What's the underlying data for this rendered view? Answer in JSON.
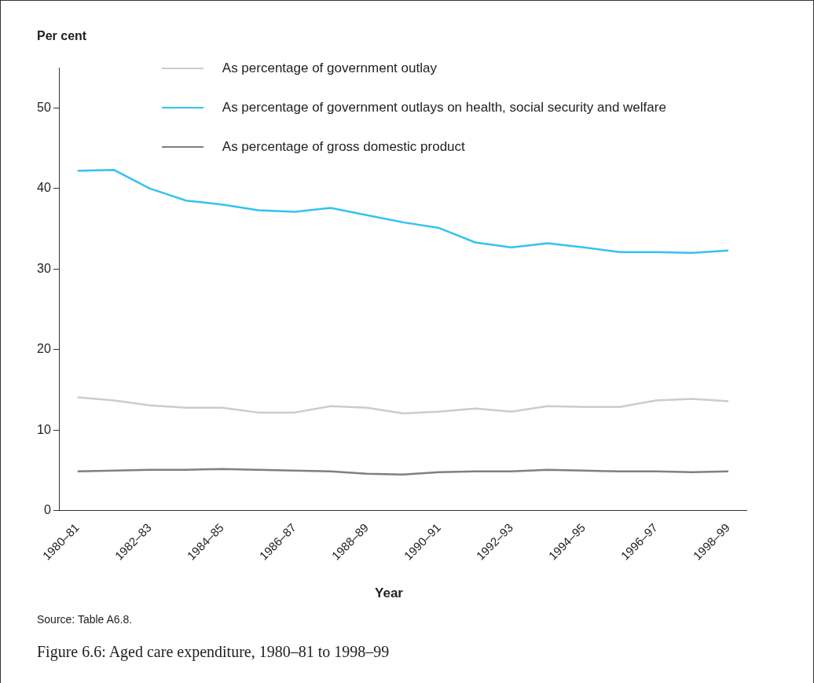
{
  "chart_data": {
    "type": "line",
    "title": "Figure 6.6: Aged care expenditure, 1980–81 to 1998–99",
    "xlabel": "Year",
    "ylabel": "Per cent",
    "annotations": [
      "Source: Table A6.8."
    ],
    "categories": [
      "1980–81",
      null,
      "1982–83",
      null,
      "1984–85",
      null,
      "1986–87",
      null,
      "1988–89",
      null,
      "1990–91",
      null,
      "1992–93",
      null,
      "1994–95",
      null,
      "1996–97",
      null,
      "1998–99"
    ],
    "series": [
      {
        "name": "As percentage of government outlay",
        "color": "#cccccc",
        "values": [
          14.1,
          13.7,
          13.1,
          12.8,
          12.8,
          12.2,
          12.2,
          13.0,
          12.8,
          12.1,
          12.3,
          12.7,
          12.3,
          13.0,
          12.9,
          12.9,
          13.7,
          13.9,
          13.6
        ]
      },
      {
        "name": "As percentage of government outlays on health, social security and welfare",
        "color": "#33c3f0",
        "values": [
          42.2,
          42.3,
          40.0,
          38.5,
          38.0,
          37.3,
          37.1,
          37.6,
          36.7,
          35.8,
          35.1,
          33.3,
          32.7,
          33.2,
          32.7,
          32.1,
          32.1,
          32.0,
          32.3
        ]
      },
      {
        "name": "As percentage of gross domestic product",
        "color": "#808080",
        "values": [
          4.9,
          5.0,
          5.1,
          5.1,
          5.2,
          5.1,
          5.0,
          4.9,
          4.6,
          4.5,
          4.8,
          4.9,
          4.9,
          5.1,
          5.0,
          4.9,
          4.9,
          4.8,
          4.9
        ]
      }
    ],
    "ylim": [
      0,
      55
    ],
    "yticks": [
      0,
      10,
      20,
      30,
      40,
      50
    ],
    "grid": false,
    "legend": "top",
    "marker": "none",
    "line_style": "solid"
  }
}
